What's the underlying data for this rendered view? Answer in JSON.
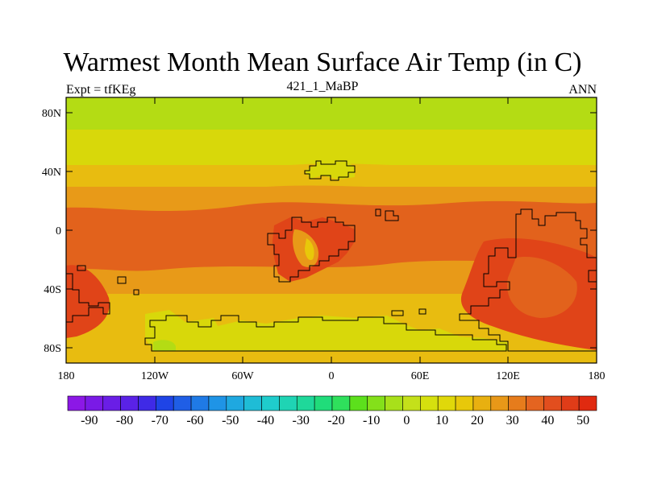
{
  "map": {
    "title": "Warmest Month Mean Surface Air Temp (in C)",
    "left_label": "Expt = tfKEg",
    "center_label": "421_1_MaBP",
    "right_label": "ANN",
    "lat_ticks": [
      "80N",
      "40N",
      "0",
      "40S",
      "80S"
    ],
    "lon_ticks": [
      "180",
      "120W",
      "60W",
      "0",
      "60E",
      "120E",
      "180"
    ]
  },
  "colorbar": {
    "labels": [
      "-90",
      "-80",
      "-70",
      "-60",
      "-50",
      "-40",
      "-30",
      "-20",
      "-10",
      "0",
      "10",
      "20",
      "30",
      "40",
      "50"
    ],
    "colors": [
      "#8c18e6",
      "#7a1ae6",
      "#6a1ee6",
      "#5a22e6",
      "#3f2ae6",
      "#1f44e6",
      "#1f5ee6",
      "#1f7ae6",
      "#1f94e6",
      "#1fa8e0",
      "#1fbcd6",
      "#1fcccc",
      "#1fd4b4",
      "#1fd89a",
      "#20dc7a",
      "#2fe05c",
      "#5ce01c",
      "#84e01a",
      "#a8e01a",
      "#c4e01a",
      "#d6e00e",
      "#e0d80a",
      "#e8c80a",
      "#e8b010",
      "#e89818",
      "#e67c1c",
      "#e46420",
      "#e24e1e",
      "#e03c18",
      "#e02a10"
    ]
  },
  "colors": {
    "band_arctic": "#b4dc14",
    "band_yellow": "#d8d80a",
    "band_gold": "#e8bc10",
    "band_orange": "#e89a18",
    "band_redorange": "#e2621c",
    "band_red": "#e04418"
  }
}
